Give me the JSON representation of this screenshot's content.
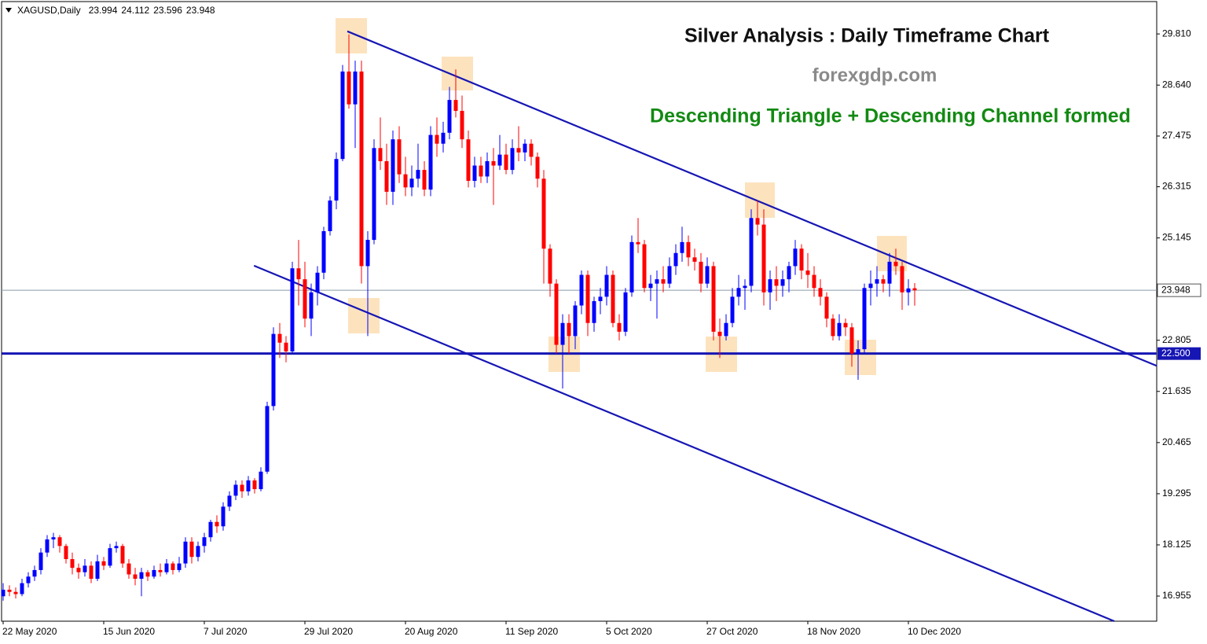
{
  "chart_data": {
    "type": "candlestick",
    "symbol": "XAGUSD,Daily",
    "title": "Silver Analysis : Daily Timeframe Chart",
    "subtitle": "forexgdp.com",
    "annotation": "Descending Triangle + Descending Channel formed",
    "up_color": "#0000ff",
    "down_color": "#ff0000",
    "categories": [
      "22 May 2020",
      null,
      null,
      null,
      null,
      null,
      null,
      null,
      null,
      null,
      null,
      null,
      null,
      null,
      null,
      null,
      "15 Jun 2020",
      null,
      null,
      null,
      null,
      null,
      null,
      null,
      null,
      null,
      null,
      null,
      null,
      null,
      null,
      null,
      "7 Jul 2020",
      null,
      null,
      null,
      null,
      null,
      null,
      null,
      null,
      null,
      null,
      null,
      null,
      null,
      null,
      null,
      "29 Jul 2020",
      null,
      null,
      null,
      null,
      null,
      null,
      null,
      null,
      null,
      null,
      null,
      null,
      null,
      null,
      null,
      "20 Aug 2020",
      null,
      null,
      null,
      null,
      null,
      null,
      null,
      null,
      null,
      null,
      null,
      null,
      null,
      null,
      null,
      "11 Sep 2020",
      null,
      null,
      null,
      null,
      null,
      null,
      null,
      null,
      null,
      null,
      null,
      null,
      null,
      null,
      null,
      "5 Oct 2020",
      null,
      null,
      null,
      null,
      null,
      null,
      null,
      null,
      null,
      null,
      null,
      null,
      null,
      null,
      null,
      "27 Oct 2020",
      null,
      null,
      null,
      null,
      null,
      null,
      null,
      null,
      null,
      null,
      null,
      null,
      null,
      null,
      null,
      "18 Nov 2020",
      null,
      null,
      null,
      null,
      null,
      null,
      null,
      null,
      null,
      null,
      null,
      null,
      null,
      null,
      null,
      "10 Dec 2020",
      null
    ],
    "ohlc": [
      [
        16.95,
        17.25,
        16.85,
        17.1
      ],
      [
        17.1,
        17.2,
        16.95,
        17.05
      ],
      [
        17.05,
        17.15,
        16.9,
        17.0
      ],
      [
        17.0,
        17.35,
        16.95,
        17.25
      ],
      [
        17.25,
        17.5,
        17.15,
        17.4
      ],
      [
        17.4,
        17.65,
        17.3,
        17.55
      ],
      [
        17.55,
        18.05,
        17.45,
        17.95
      ],
      [
        17.95,
        18.35,
        17.85,
        18.25
      ],
      [
        18.25,
        18.4,
        18.05,
        18.3
      ],
      [
        18.3,
        18.35,
        17.95,
        18.1
      ],
      [
        18.1,
        18.15,
        17.7,
        17.8
      ],
      [
        17.8,
        17.95,
        17.45,
        17.6
      ],
      [
        17.6,
        17.7,
        17.35,
        17.5
      ],
      [
        17.5,
        17.8,
        17.4,
        17.65
      ],
      [
        17.65,
        17.75,
        17.25,
        17.35
      ],
      [
        17.35,
        17.9,
        17.3,
        17.75
      ],
      [
        17.75,
        17.85,
        17.55,
        17.65
      ],
      [
        17.65,
        18.15,
        17.6,
        18.05
      ],
      [
        18.05,
        18.2,
        17.95,
        18.1
      ],
      [
        18.1,
        18.15,
        17.6,
        17.7
      ],
      [
        17.7,
        17.8,
        17.35,
        17.45
      ],
      [
        17.45,
        17.6,
        17.2,
        17.35
      ],
      [
        17.35,
        17.6,
        16.95,
        17.5
      ],
      [
        17.5,
        17.55,
        17.3,
        17.4
      ],
      [
        17.4,
        17.65,
        17.35,
        17.55
      ],
      [
        17.55,
        17.7,
        17.4,
        17.5
      ],
      [
        17.5,
        17.8,
        17.45,
        17.7
      ],
      [
        17.7,
        17.75,
        17.45,
        17.55
      ],
      [
        17.55,
        17.85,
        17.5,
        17.7
      ],
      [
        17.7,
        18.3,
        17.6,
        18.2
      ],
      [
        18.2,
        18.3,
        17.7,
        17.85
      ],
      [
        17.85,
        18.2,
        17.75,
        18.1
      ],
      [
        18.1,
        18.4,
        17.95,
        18.3
      ],
      [
        18.3,
        18.7,
        18.2,
        18.65
      ],
      [
        18.65,
        18.8,
        18.4,
        18.55
      ],
      [
        18.55,
        19.1,
        18.45,
        19.0
      ],
      [
        19.0,
        19.35,
        18.9,
        19.25
      ],
      [
        19.25,
        19.6,
        19.15,
        19.5
      ],
      [
        19.5,
        19.6,
        19.2,
        19.35
      ],
      [
        19.35,
        19.7,
        19.25,
        19.6
      ],
      [
        19.6,
        19.65,
        19.3,
        19.4
      ],
      [
        19.4,
        19.9,
        19.35,
        19.8
      ],
      [
        19.8,
        21.4,
        19.75,
        21.3
      ],
      [
        21.3,
        23.1,
        21.2,
        22.95
      ],
      [
        22.95,
        23.2,
        22.4,
        22.75
      ],
      [
        22.75,
        22.9,
        22.3,
        22.55
      ],
      [
        22.55,
        24.6,
        22.5,
        24.45
      ],
      [
        24.45,
        25.1,
        23.6,
        24.2
      ],
      [
        24.2,
        24.6,
        23.1,
        23.3
      ],
      [
        23.3,
        24.1,
        22.9,
        23.9
      ],
      [
        23.9,
        24.5,
        23.6,
        24.35
      ],
      [
        24.35,
        25.4,
        24.2,
        25.3
      ],
      [
        25.3,
        26.1,
        25.2,
        26.0
      ],
      [
        26.0,
        27.1,
        25.8,
        26.95
      ],
      [
        26.95,
        29.1,
        26.9,
        28.95
      ],
      [
        28.95,
        29.8,
        28.1,
        28.2
      ],
      [
        28.2,
        29.2,
        27.2,
        28.95
      ],
      [
        28.95,
        29.2,
        24.1,
        24.5
      ],
      [
        24.5,
        25.3,
        22.9,
        25.1
      ],
      [
        25.1,
        27.4,
        25.0,
        27.2
      ],
      [
        27.2,
        27.9,
        26.7,
        26.9
      ],
      [
        26.9,
        27.3,
        25.9,
        26.2
      ],
      [
        26.2,
        27.6,
        25.9,
        27.4
      ],
      [
        27.4,
        27.7,
        26.4,
        26.6
      ],
      [
        26.6,
        27.0,
        26.1,
        26.3
      ],
      [
        26.3,
        26.8,
        26.1,
        26.5
      ],
      [
        26.5,
        27.3,
        26.3,
        26.7
      ],
      [
        26.7,
        26.9,
        26.1,
        26.25
      ],
      [
        26.25,
        27.7,
        26.1,
        27.5
      ],
      [
        27.5,
        27.9,
        27.0,
        27.3
      ],
      [
        27.3,
        27.8,
        27.1,
        27.55
      ],
      [
        27.55,
        28.6,
        27.4,
        28.3
      ],
      [
        28.3,
        29.0,
        27.9,
        28.05
      ],
      [
        28.05,
        28.4,
        27.2,
        27.4
      ],
      [
        27.4,
        27.6,
        26.3,
        26.45
      ],
      [
        26.45,
        27.0,
        26.3,
        26.8
      ],
      [
        26.8,
        27.0,
        26.4,
        26.55
      ],
      [
        26.55,
        27.1,
        26.4,
        26.9
      ],
      [
        26.9,
        27.2,
        25.9,
        26.8
      ],
      [
        26.8,
        27.5,
        26.7,
        27.05
      ],
      [
        27.05,
        27.3,
        26.6,
        26.7
      ],
      [
        26.7,
        27.4,
        26.6,
        27.2
      ],
      [
        27.2,
        27.7,
        26.9,
        27.1
      ],
      [
        27.1,
        27.4,
        26.9,
        27.3
      ],
      [
        27.3,
        27.4,
        26.8,
        27.0
      ],
      [
        27.0,
        27.1,
        26.3,
        26.5
      ],
      [
        26.5,
        26.7,
        24.1,
        24.9
      ],
      [
        24.9,
        25.0,
        23.8,
        24.1
      ],
      [
        24.1,
        24.2,
        22.5,
        22.7
      ],
      [
        22.7,
        23.4,
        21.7,
        23.2
      ],
      [
        23.2,
        23.4,
        22.5,
        22.9
      ],
      [
        22.9,
        23.7,
        22.6,
        23.6
      ],
      [
        23.6,
        24.4,
        23.4,
        24.3
      ],
      [
        24.3,
        24.4,
        22.9,
        23.2
      ],
      [
        23.2,
        23.8,
        23.0,
        23.7
      ],
      [
        23.7,
        24.0,
        23.4,
        23.8
      ],
      [
        23.8,
        24.5,
        23.6,
        24.3
      ],
      [
        24.3,
        24.4,
        23.1,
        23.2
      ],
      [
        23.2,
        23.4,
        22.8,
        23.0
      ],
      [
        23.0,
        24.0,
        22.9,
        23.9
      ],
      [
        23.9,
        25.2,
        23.8,
        25.05
      ],
      [
        25.05,
        25.6,
        24.8,
        25.0
      ],
      [
        25.0,
        25.1,
        23.9,
        24.0
      ],
      [
        24.0,
        24.3,
        23.7,
        24.1
      ],
      [
        24.1,
        24.4,
        23.3,
        24.2
      ],
      [
        24.2,
        24.5,
        23.9,
        24.1
      ],
      [
        24.1,
        24.7,
        24.0,
        24.5
      ],
      [
        24.5,
        25.0,
        24.3,
        24.8
      ],
      [
        24.8,
        25.4,
        24.6,
        25.05
      ],
      [
        25.05,
        25.2,
        24.5,
        24.7
      ],
      [
        24.7,
        24.9,
        24.4,
        24.6
      ],
      [
        24.6,
        24.8,
        23.9,
        24.1
      ],
      [
        24.1,
        24.7,
        24.0,
        24.5
      ],
      [
        24.5,
        24.6,
        22.8,
        23.0
      ],
      [
        23.0,
        23.3,
        22.4,
        22.9
      ],
      [
        22.9,
        23.4,
        22.8,
        23.2
      ],
      [
        23.2,
        24.0,
        23.1,
        23.8
      ],
      [
        23.8,
        24.3,
        23.6,
        24.0
      ],
      [
        24.0,
        24.2,
        23.5,
        24.05
      ],
      [
        24.05,
        25.8,
        23.9,
        25.6
      ],
      [
        25.6,
        26.0,
        25.2,
        25.45
      ],
      [
        25.45,
        25.8,
        23.6,
        23.9
      ],
      [
        23.9,
        24.4,
        23.5,
        24.2
      ],
      [
        24.2,
        24.5,
        23.7,
        24.05
      ],
      [
        24.05,
        24.4,
        23.8,
        24.2
      ],
      [
        24.2,
        24.6,
        23.9,
        24.5
      ],
      [
        24.5,
        25.1,
        24.3,
        24.9
      ],
      [
        24.9,
        25.0,
        24.2,
        24.4
      ],
      [
        24.4,
        24.8,
        24.0,
        24.3
      ],
      [
        24.3,
        24.5,
        23.8,
        24.0
      ],
      [
        24.0,
        24.2,
        23.6,
        23.8
      ],
      [
        23.8,
        23.9,
        23.1,
        23.3
      ],
      [
        23.3,
        23.4,
        22.8,
        22.9
      ],
      [
        22.9,
        23.4,
        22.8,
        23.2
      ],
      [
        23.2,
        23.3,
        22.9,
        23.1
      ],
      [
        23.1,
        23.2,
        22.2,
        22.5
      ],
      [
        22.5,
        22.8,
        21.9,
        22.6
      ],
      [
        22.6,
        24.1,
        22.5,
        24.0
      ],
      [
        24.0,
        24.4,
        23.6,
        24.1
      ],
      [
        24.1,
        24.5,
        23.8,
        24.2
      ],
      [
        24.2,
        24.3,
        23.9,
        24.1
      ],
      [
        24.1,
        24.8,
        23.8,
        24.6
      ],
      [
        24.6,
        24.9,
        24.3,
        24.5
      ],
      [
        24.5,
        24.6,
        23.5,
        23.9
      ],
      [
        23.9,
        24.2,
        23.6,
        23.99
      ],
      [
        23.994,
        24.112,
        23.596,
        23.948
      ]
    ],
    "ylim": [
      16.38,
      30.55
    ],
    "yticks": [
      {
        "value": 29.81,
        "label": "29.810"
      },
      {
        "value": 28.64,
        "label": "28.640"
      },
      27.475,
      26.315,
      25.145,
      22.805,
      21.635,
      20.465,
      19.295,
      18.125,
      16.955
    ],
    "hlines": [
      {
        "value": 22.5,
        "label": "22.500"
      }
    ],
    "trendlines": [
      {
        "from": [
          54.75,
          29.87
        ],
        "to": [
          183.5,
          22.22
        ]
      },
      {
        "from": [
          39.9,
          24.51
        ],
        "to": [
          176.75,
          16.38
        ]
      }
    ],
    "line_color": "#1616b4"
  }
}
